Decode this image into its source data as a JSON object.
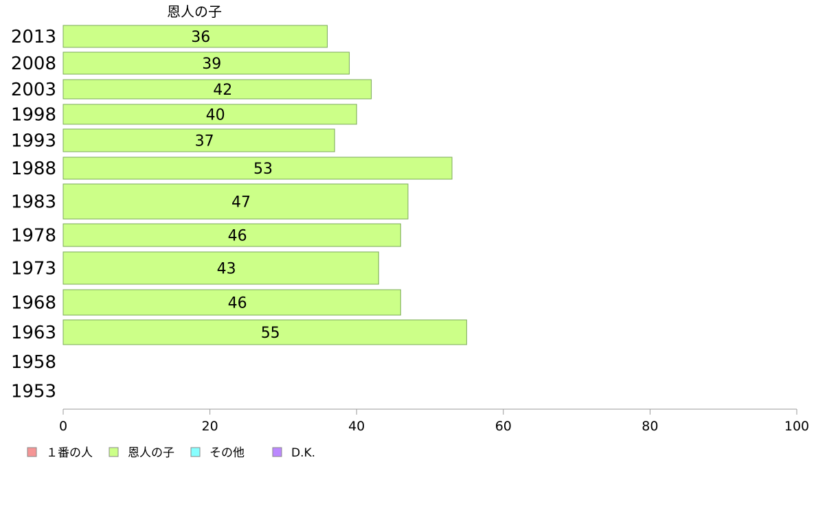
{
  "chart_data": {
    "type": "bar",
    "orientation": "horizontal",
    "title": "恩人の子",
    "categories": [
      "2013",
      "2008",
      "2003",
      "1998",
      "1993",
      "1988",
      "1983",
      "1978",
      "1973",
      "1968",
      "1963",
      "1958",
      "1953"
    ],
    "series": [
      {
        "name": "恩人の子",
        "values": [
          36,
          39,
          42,
          40,
          37,
          53,
          47,
          46,
          43,
          46,
          55,
          null,
          null
        ]
      }
    ],
    "data_labels": [
      "36",
      "39",
      "42",
      "40",
      "37",
      "53",
      "47",
      "46",
      "43",
      "46",
      "55",
      "",
      ""
    ],
    "xlim": [
      0,
      100
    ],
    "xticks": [
      "0",
      "20",
      "40",
      "60",
      "80",
      "100"
    ],
    "grid": false,
    "legend": {
      "placement": "bottom-left",
      "entries": [
        {
          "label": "１番の人",
          "color": "#f59595"
        },
        {
          "label": "恩人の子",
          "color": "#ccff88"
        },
        {
          "label": "その他",
          "color": "#88ffff"
        },
        {
          "label": "D.K.",
          "color": "#bb88ff"
        }
      ]
    },
    "colors": {
      "bar_fill": "#ccff88",
      "bar_stroke": "#7aa85a",
      "axis": "#999999"
    }
  }
}
